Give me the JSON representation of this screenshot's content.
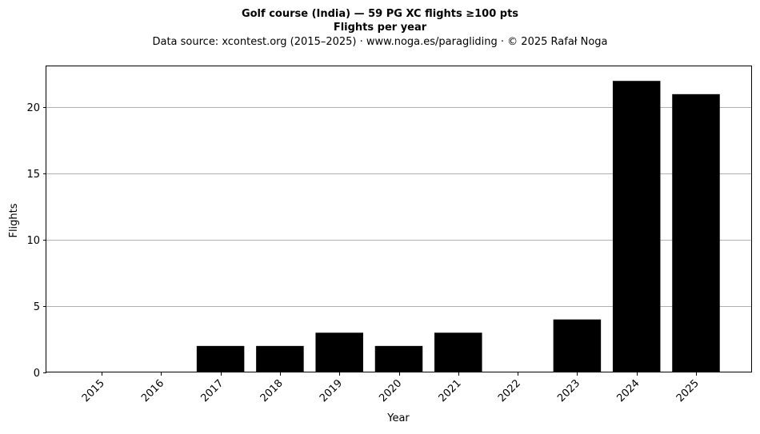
{
  "title": {
    "line1": "Golf course (India)  —  59 PG XC flights ≥100 pts",
    "line2": "Flights per year",
    "line3": "Data source: xcontest.org (2015–2025)  ·  www.noga.es/paragliding  ·  © 2025 Rafał Noga"
  },
  "chart_data": {
    "type": "bar",
    "title": "Golf course (India)  —  59 PG XC flights ≥100 pts",
    "subtitle": "Flights per year",
    "xlabel": "Year",
    "ylabel": "Flights",
    "categories": [
      "2015",
      "2016",
      "2017",
      "2018",
      "2019",
      "2020",
      "2021",
      "2022",
      "2023",
      "2024",
      "2025"
    ],
    "values": [
      0,
      0,
      2,
      2,
      3,
      2,
      3,
      0,
      4,
      22,
      21
    ],
    "ylim": [
      0,
      23.1
    ],
    "yticks": [
      0,
      5,
      10,
      15,
      20
    ],
    "grid": "y-major",
    "bar_color": "#000000",
    "grid_color": "#b0b0b0"
  }
}
